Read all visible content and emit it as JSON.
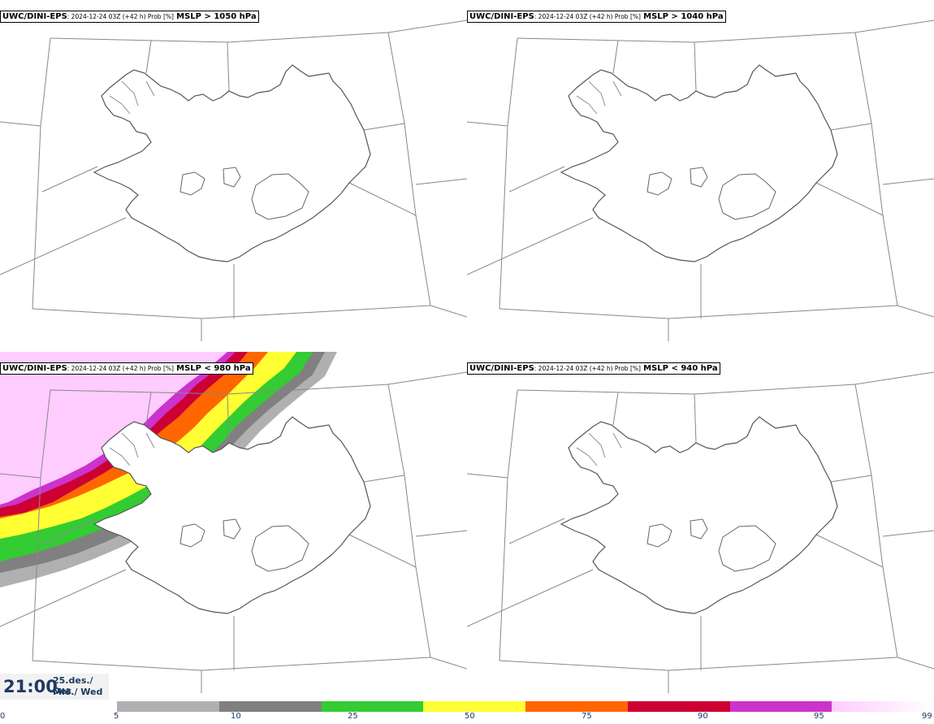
{
  "panels": [
    {
      "model": "UWC/DINI-EPS",
      "meta": ": 2024-12-24 03Z (+42 h) Prob [%]",
      "threshold": "MSLP > 1050 hPa"
    },
    {
      "model": "UWC/DINI-EPS",
      "meta": ": 2024-12-24 03Z (+42 h) Prob [%]",
      "threshold": "MSLP > 1040 hPa"
    },
    {
      "model": "UWC/DINI-EPS",
      "meta": ": 2024-12-24 03Z (+42 h) Prob [%]",
      "threshold": "MSLP < 980 hPa"
    },
    {
      "model": "UWC/DINI-EPS",
      "meta": ": 2024-12-24 03Z (+42 h) Prob [%]",
      "threshold": "MSLP < 940 hPa"
    }
  ],
  "valid_time": {
    "time": "21:00",
    "date": "25.des./ Dec",
    "weekday": "Mið./ Wed"
  },
  "legend": {
    "ticks": [
      "0",
      "5",
      "10",
      "25",
      "50",
      "75",
      "90",
      "95",
      "99"
    ],
    "colors": [
      "#b0b0b0",
      "#808080",
      "#33cc33",
      "#ffff33",
      "#ff6600",
      "#cc0033",
      "#cc33cc",
      "#ffccff"
    ]
  }
}
